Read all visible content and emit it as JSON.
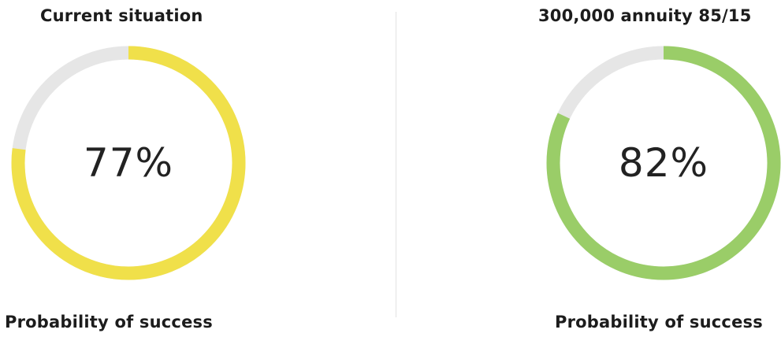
{
  "left": {
    "title": "Current situation",
    "value_label": "77%",
    "probability": 0.77,
    "footer": "Probability of success",
    "color": "#f0e04a",
    "track_color": "#e6e6e6"
  },
  "right": {
    "title": "300,000 annuity 85/15",
    "value_label": "82%",
    "probability": 0.82,
    "footer": "Probability of success",
    "color": "#9acd68",
    "track_color": "#e6e6e6"
  }
}
